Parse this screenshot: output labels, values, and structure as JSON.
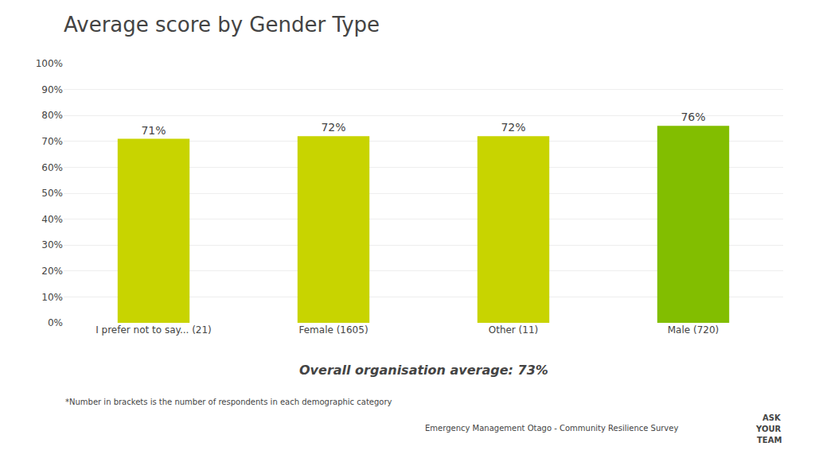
{
  "chart_data": {
    "type": "bar",
    "title": "Average score by Gender Type",
    "categories": [
      "I prefer not to say... (21)",
      "Female (1605)",
      "Other (11)",
      "Male (720)"
    ],
    "values": [
      0.71,
      0.72,
      0.72,
      0.76
    ],
    "value_labels": [
      "71%",
      "72%",
      "72%",
      "76%"
    ],
    "colors": [
      "#C8D400",
      "#C8D400",
      "#C8D400",
      "#82BE00"
    ],
    "data_labels": true,
    "ylim": [
      0,
      1.0
    ],
    "yticks": [
      {
        "value": 0,
        "label": "0%"
      },
      {
        "value": 0.1,
        "label": "10%"
      },
      {
        "value": 0.2,
        "label": "20%"
      },
      {
        "value": 0.3,
        "label": "30%"
      },
      {
        "value": 0.4,
        "label": "40%"
      },
      {
        "value": 0.5,
        "label": "50%"
      },
      {
        "value": 0.6,
        "label": "60%"
      },
      {
        "value": 0.7,
        "label": "70%"
      },
      {
        "value": 0.8,
        "label": "80%"
      },
      {
        "value": 0.9,
        "label": "90%"
      },
      {
        "value": 1.0,
        "label": "100%"
      }
    ],
    "grid": true,
    "annotations": [
      "Overall organisation average: 73%",
      "*Number in brackets is the number of respondents in each demographic category",
      "Emergency Management Otago - Community Resilience Survey",
      "ASK",
      "YOUR",
      "TEAM"
    ]
  }
}
